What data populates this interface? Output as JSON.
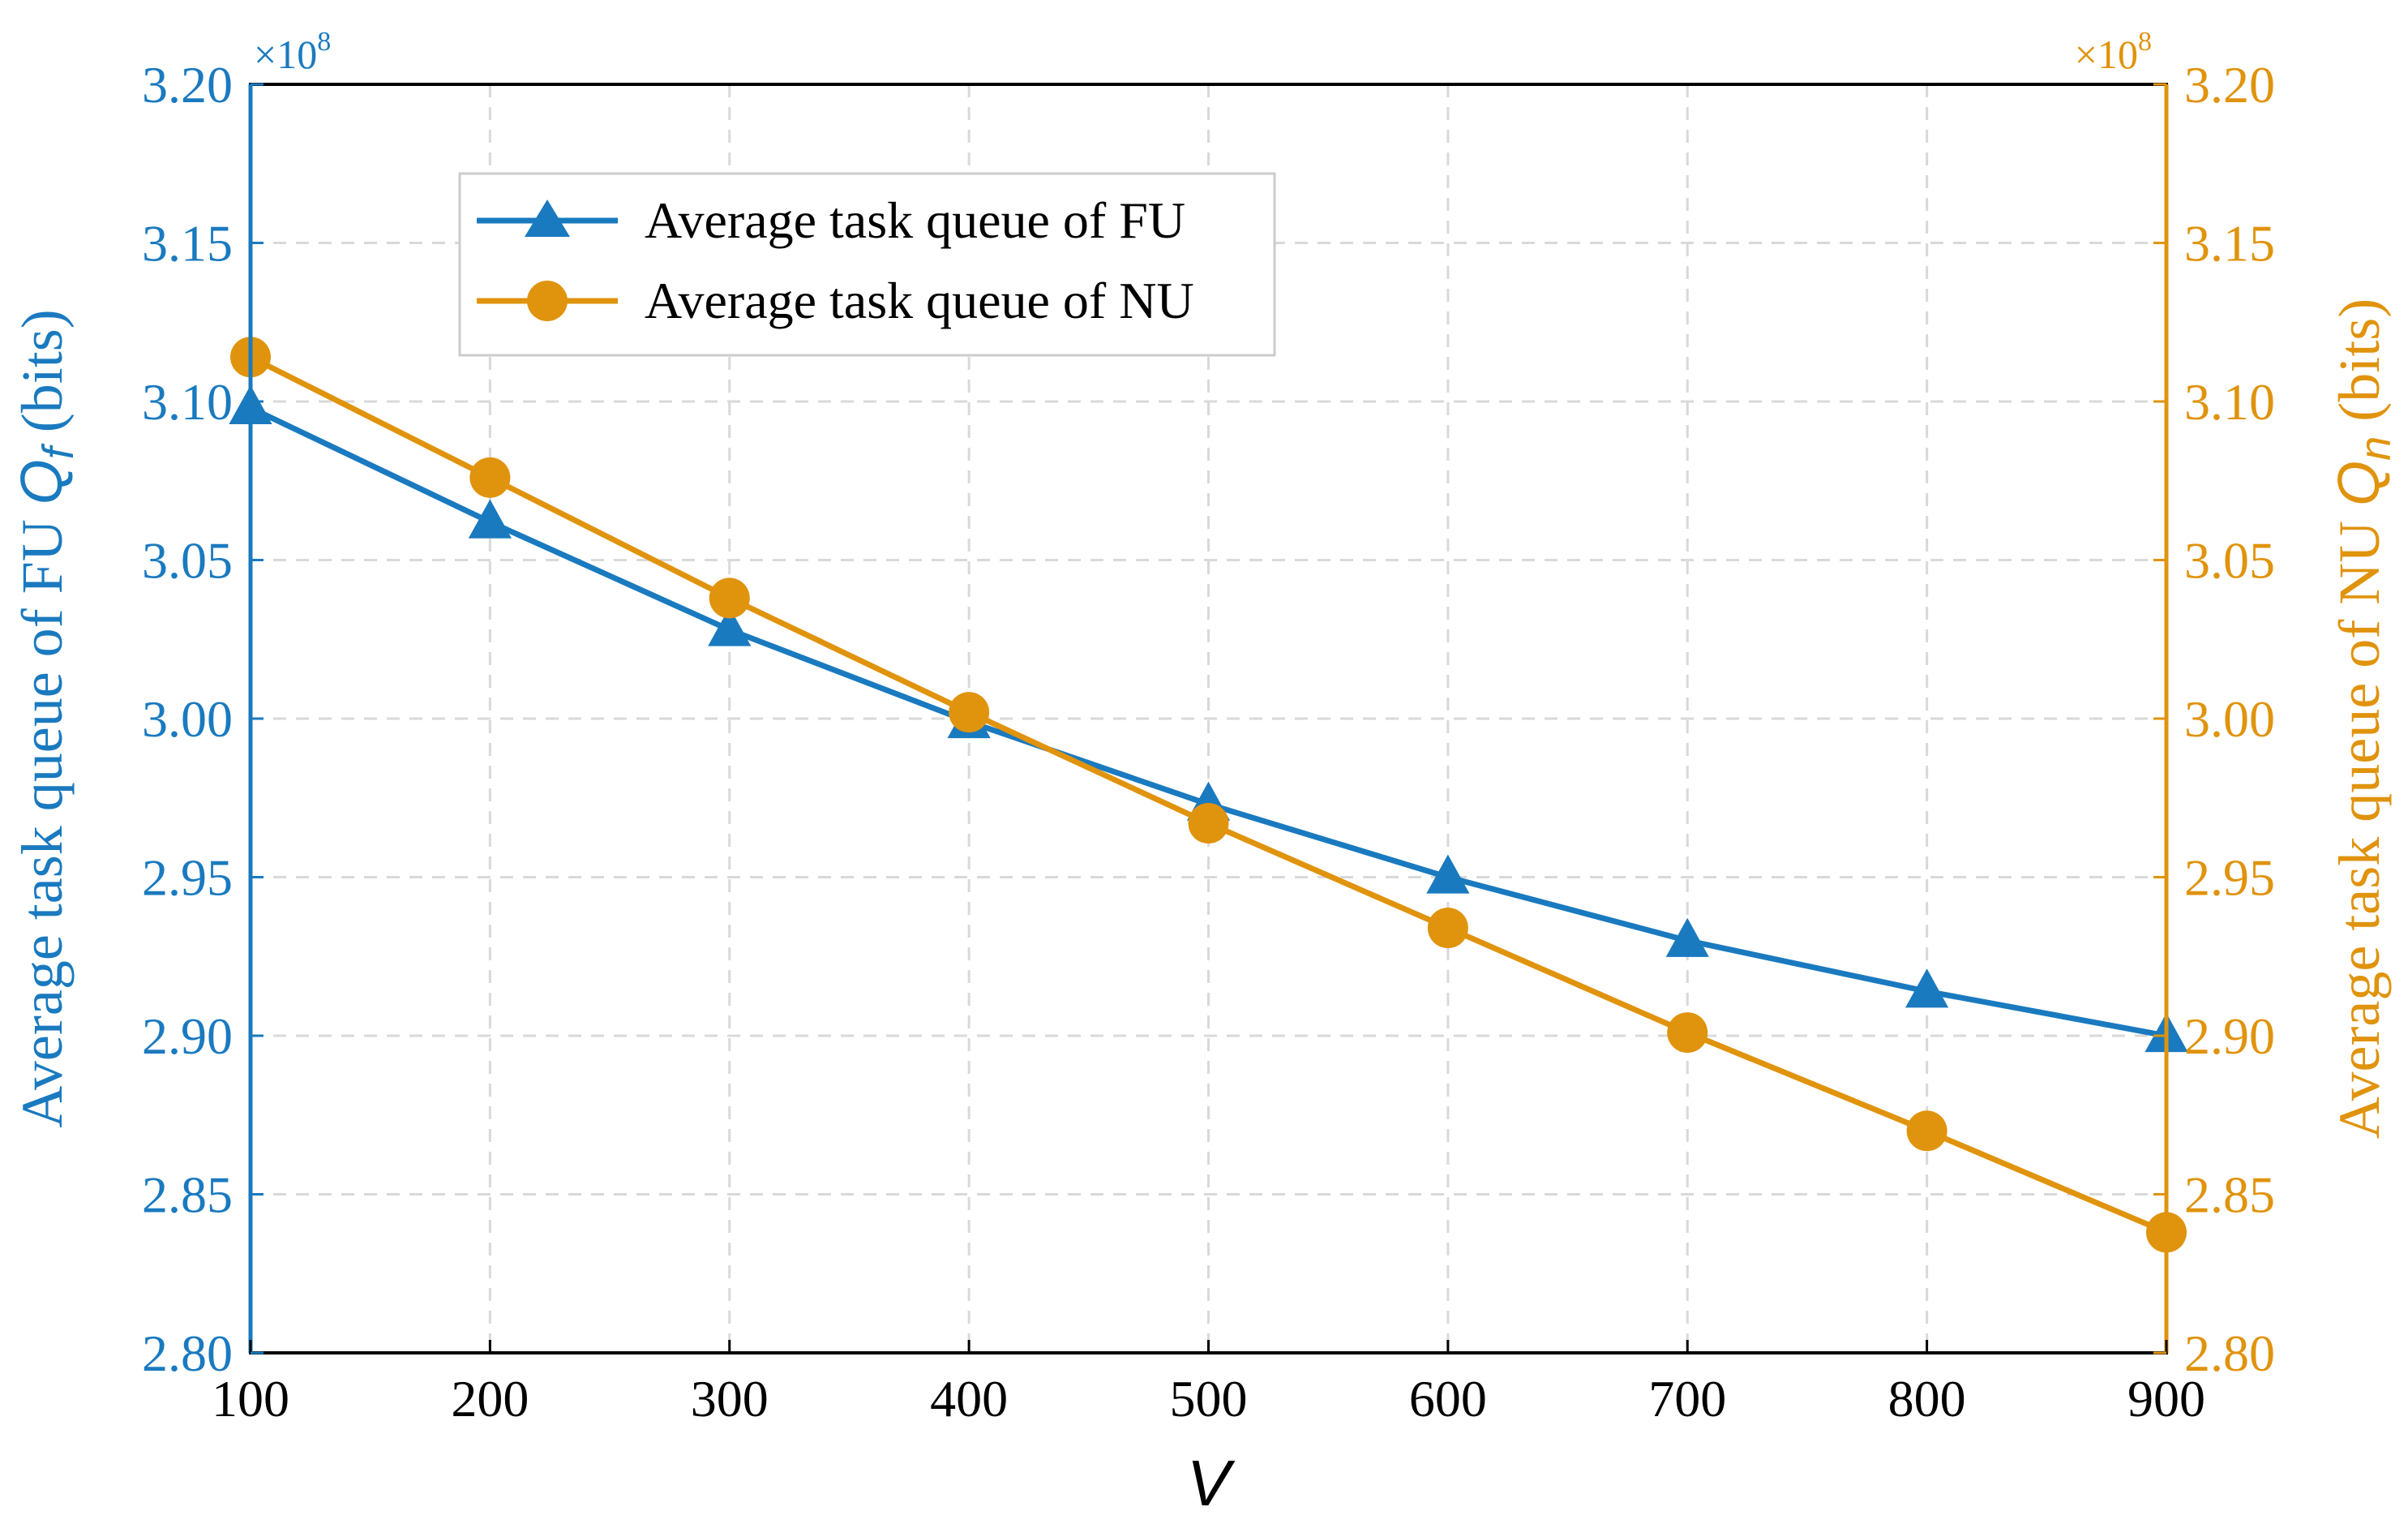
{
  "chart_data": {
    "type": "line",
    "xlabel": "V",
    "x": [
      100,
      200,
      300,
      400,
      500,
      600,
      700,
      800,
      900
    ],
    "xlim": [
      100,
      900
    ],
    "x_ticks": [
      "100",
      "200",
      "300",
      "400",
      "500",
      "600",
      "700",
      "800",
      "900"
    ],
    "y_left": {
      "label": "Average task queue of FU",
      "symbol": "Q",
      "subscript": "f",
      "unit": "(bits)",
      "multiplier": "×10",
      "exponent": "8",
      "ylim": [
        2.8,
        3.2
      ],
      "ticks": [
        "2.80",
        "2.85",
        "2.90",
        "2.95",
        "3.00",
        "3.05",
        "3.10",
        "3.15",
        "3.20"
      ],
      "color": "#1a7abf"
    },
    "y_right": {
      "label": "Average task queue of NU",
      "symbol": "Q",
      "subscript": "n",
      "unit": "(bits)",
      "multiplier": "×10",
      "exponent": "8",
      "ylim": [
        2.8,
        3.2
      ],
      "ticks": [
        "2.80",
        "2.85",
        "2.90",
        "2.95",
        "3.00",
        "3.05",
        "3.10",
        "3.15",
        "3.20"
      ],
      "color": "#e0930c"
    },
    "series": [
      {
        "name": "Average task queue of FU",
        "axis": "left",
        "marker": "triangle",
        "color": "#1a7abf",
        "values": [
          3.098,
          3.062,
          3.028,
          2.999,
          2.973,
          2.95,
          2.93,
          2.914,
          2.9
        ]
      },
      {
        "name": "Average task queue of NU",
        "axis": "right",
        "marker": "circle",
        "color": "#e0930c",
        "values": [
          3.114,
          3.076,
          3.038,
          3.002,
          2.967,
          2.934,
          2.901,
          2.87,
          2.838
        ]
      }
    ],
    "grid": true,
    "legend_position": "upper-left"
  }
}
